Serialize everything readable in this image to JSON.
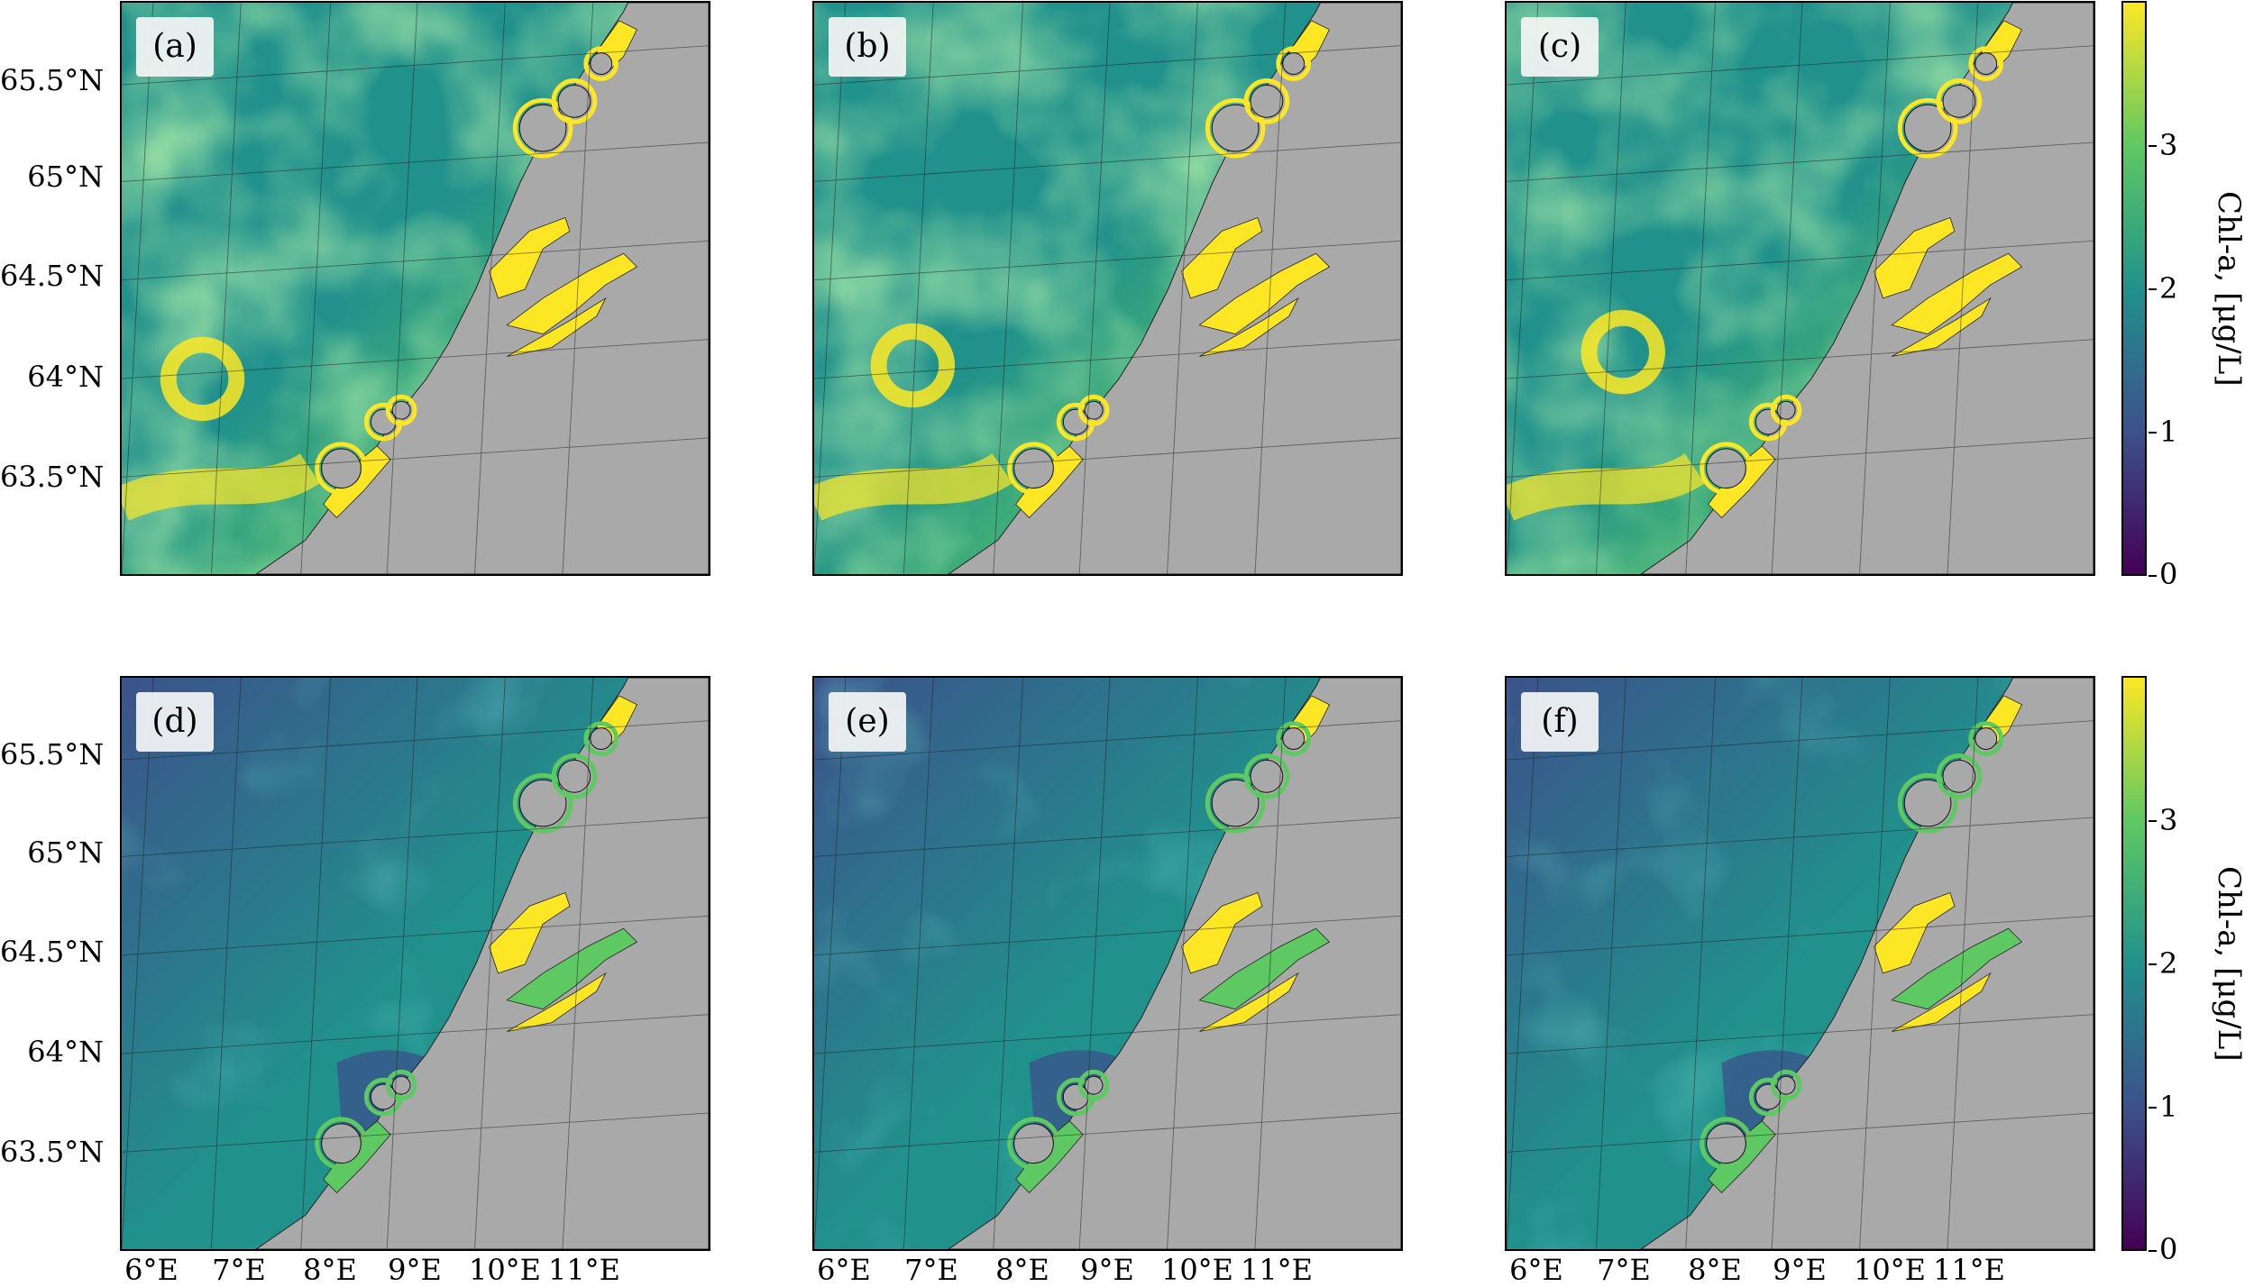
{
  "colormap": {
    "name": "viridis",
    "colors": [
      "#440154",
      "#3b528b",
      "#21918c",
      "#5ec962",
      "#fde725"
    ]
  },
  "land_color": "#a9a9a9",
  "panels": [
    {
      "label": "(a)",
      "level": "high"
    },
    {
      "label": "(b)",
      "level": "high"
    },
    {
      "label": "(c)",
      "level": "high"
    },
    {
      "label": "(d)",
      "level": "low"
    },
    {
      "label": "(e)",
      "level": "low"
    },
    {
      "label": "(f)",
      "level": "low"
    }
  ],
  "lat_labels": [
    "65.5°N",
    "65°N",
    "64.5°N",
    "64°N",
    "63.5°N"
  ],
  "lon_labels": [
    "6°E",
    "7°E",
    "8°E",
    "9°E",
    "10°E",
    "11°E"
  ],
  "colorbar": {
    "title": "Chl-a, [μg/L]",
    "ticks": [
      "0",
      "1",
      "2",
      "3"
    ],
    "range": [
      0,
      4
    ]
  }
}
